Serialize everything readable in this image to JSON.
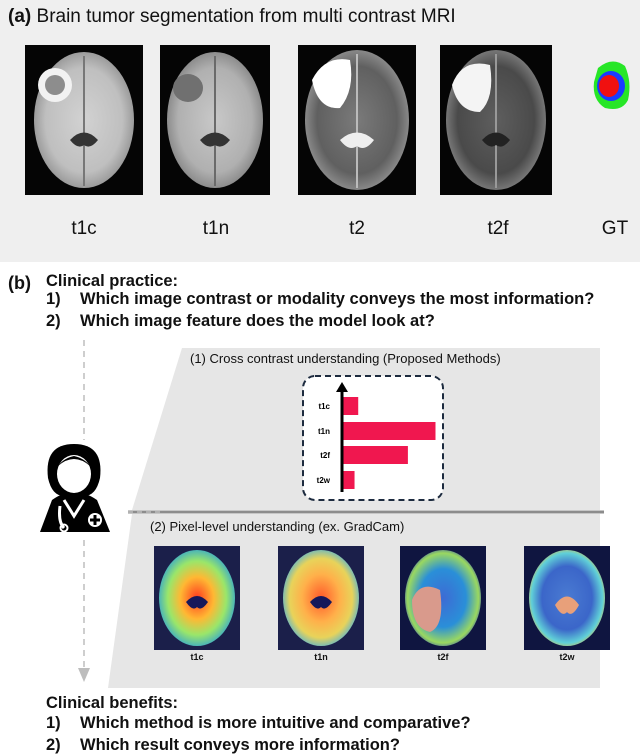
{
  "panel_a": {
    "label": "(a)",
    "title": "Brain tumor segmentation from multi contrast MRI",
    "modalities": [
      "t1c",
      "t1n",
      "t2",
      "t2f",
      "GT"
    ]
  },
  "panel_b": {
    "label": "(b)",
    "clinical_practice": {
      "heading": "Clinical practice:",
      "items": [
        {
          "num": "1)",
          "text": "Which image contrast or modality conveys the most information?"
        },
        {
          "num": "2)",
          "text": "Which image feature does the model look at?"
        }
      ]
    },
    "cross_contrast_title": "(1) Cross contrast understanding (Proposed Methods)",
    "pixel_level_title": "(2) Pixel-level understanding (ex. GradCam)",
    "gradcam_labels": [
      "t1c",
      "t1n",
      "t2f",
      "t2w"
    ],
    "clinical_benefits": {
      "heading": "Clinical benefits:",
      "items": [
        {
          "num": "1)",
          "text": "Which method is more intuitive and comparative?"
        },
        {
          "num": "2)",
          "text": "Which result conveys more information?"
        }
      ]
    }
  },
  "chart_data": {
    "type": "bar",
    "orientation": "horizontal",
    "categories": [
      "t1c",
      "t1n",
      "t2f",
      "t2w"
    ],
    "values": [
      0.16,
      1.0,
      0.7,
      0.12
    ],
    "bar_color": "#f0174f"
  }
}
